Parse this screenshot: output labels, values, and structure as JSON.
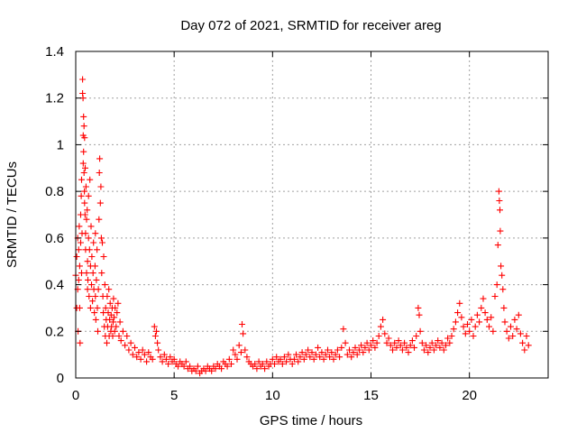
{
  "chart_data": {
    "type": "scatter",
    "title": "Day 072 of 2021, SRMTID for receiver areg",
    "xlabel": "GPS time / hours",
    "ylabel": "SRMTID / TECUs",
    "xlim": [
      0,
      24
    ],
    "ylim": [
      0,
      1.4
    ],
    "xticks": [
      0,
      5,
      10,
      15,
      20
    ],
    "xtick_labels": [
      "0",
      "5",
      "10",
      "15",
      "20"
    ],
    "yticks": [
      0,
      0.2,
      0.4,
      0.6,
      0.8,
      1,
      1.2,
      1.4
    ],
    "ytick_labels": [
      "0",
      "0.2",
      "0.4",
      "0.6",
      "0.8",
      "1",
      "1.2",
      "1.4"
    ],
    "grid": true,
    "marker": "+",
    "color": "#ff0000",
    "series": [
      {
        "name": "SRMTID",
        "points": [
          [
            0.0,
            0.44
          ],
          [
            0.05,
            0.52
          ],
          [
            0.05,
            0.3
          ],
          [
            0.1,
            0.6
          ],
          [
            0.1,
            0.38
          ],
          [
            0.12,
            0.2
          ],
          [
            0.15,
            0.55
          ],
          [
            0.15,
            0.42
          ],
          [
            0.18,
            0.65
          ],
          [
            0.2,
            0.3
          ],
          [
            0.2,
            0.48
          ],
          [
            0.22,
            0.15
          ],
          [
            0.25,
            0.7
          ],
          [
            0.25,
            0.58
          ],
          [
            0.28,
            0.78
          ],
          [
            0.3,
            0.45
          ],
          [
            0.3,
            0.85
          ],
          [
            0.32,
            0.62
          ],
          [
            0.35,
            1.28
          ],
          [
            0.35,
            1.22
          ],
          [
            0.37,
            1.2
          ],
          [
            0.38,
            0.92
          ],
          [
            0.38,
            1.04
          ],
          [
            0.4,
            0.97
          ],
          [
            0.4,
            1.12
          ],
          [
            0.42,
            1.08
          ],
          [
            0.42,
            0.88
          ],
          [
            0.44,
            0.8
          ],
          [
            0.45,
            1.03
          ],
          [
            0.45,
            0.75
          ],
          [
            0.47,
            0.7
          ],
          [
            0.48,
            0.9
          ],
          [
            0.5,
            0.62
          ],
          [
            0.5,
            0.55
          ],
          [
            0.52,
            0.82
          ],
          [
            0.55,
            0.68
          ],
          [
            0.55,
            0.45
          ],
          [
            0.58,
            0.72
          ],
          [
            0.6,
            0.5
          ],
          [
            0.6,
            0.38
          ],
          [
            0.62,
            0.42
          ],
          [
            0.65,
            0.78
          ],
          [
            0.65,
            0.6
          ],
          [
            0.68,
            0.35
          ],
          [
            0.7,
            0.55
          ],
          [
            0.72,
            0.85
          ],
          [
            0.75,
            0.48
          ],
          [
            0.75,
            0.3
          ],
          [
            0.78,
            0.65
          ],
          [
            0.8,
            0.4
          ],
          [
            0.82,
            0.52
          ],
          [
            0.85,
            0.33
          ],
          [
            0.88,
            0.45
          ],
          [
            0.9,
            0.58
          ],
          [
            0.92,
            0.38
          ],
          [
            0.95,
            0.28
          ],
          [
            0.98,
            0.48
          ],
          [
            1.0,
            0.35
          ],
          [
            1.0,
            0.62
          ],
          [
            1.02,
            0.25
          ],
          [
            1.05,
            0.42
          ],
          [
            1.08,
            0.55
          ],
          [
            1.1,
            0.3
          ],
          [
            1.12,
            0.2
          ],
          [
            1.15,
            0.38
          ],
          [
            1.18,
            0.68
          ],
          [
            1.2,
            0.88
          ],
          [
            1.22,
            0.94
          ],
          [
            1.25,
            0.75
          ],
          [
            1.28,
            0.82
          ],
          [
            1.3,
            0.6
          ],
          [
            1.32,
            0.45
          ],
          [
            1.35,
            0.58
          ],
          [
            1.38,
            0.35
          ],
          [
            1.4,
            0.28
          ],
          [
            1.42,
            0.52
          ],
          [
            1.45,
            0.22
          ],
          [
            1.48,
            0.4
          ],
          [
            1.5,
            0.18
          ],
          [
            1.52,
            0.3
          ],
          [
            1.55,
            0.25
          ],
          [
            1.58,
            0.15
          ],
          [
            1.6,
            0.35
          ],
          [
            1.62,
            0.22
          ],
          [
            1.65,
            0.28
          ],
          [
            1.68,
            0.38
          ],
          [
            1.7,
            0.18
          ],
          [
            1.72,
            0.25
          ],
          [
            1.75,
            0.32
          ],
          [
            1.78,
            0.2
          ],
          [
            1.8,
            0.27
          ],
          [
            1.82,
            0.22
          ],
          [
            1.85,
            0.3
          ],
          [
            1.88,
            0.18
          ],
          [
            1.9,
            0.24
          ],
          [
            1.92,
            0.34
          ],
          [
            1.95,
            0.26
          ],
          [
            1.98,
            0.2
          ],
          [
            2.0,
            0.3
          ],
          [
            2.05,
            0.22
          ],
          [
            2.1,
            0.28
          ],
          [
            2.15,
            0.32
          ],
          [
            2.2,
            0.18
          ],
          [
            2.25,
            0.24
          ],
          [
            2.3,
            0.16
          ],
          [
            2.4,
            0.2
          ],
          [
            2.5,
            0.14
          ],
          [
            2.6,
            0.18
          ],
          [
            2.7,
            0.12
          ],
          [
            2.8,
            0.15
          ],
          [
            2.9,
            0.1
          ],
          [
            3.0,
            0.13
          ],
          [
            3.1,
            0.09
          ],
          [
            3.2,
            0.11
          ],
          [
            3.3,
            0.08
          ],
          [
            3.4,
            0.12
          ],
          [
            3.5,
            0.1
          ],
          [
            3.6,
            0.07
          ],
          [
            3.7,
            0.11
          ],
          [
            3.8,
            0.09
          ],
          [
            3.9,
            0.08
          ],
          [
            4.0,
            0.22
          ],
          [
            4.05,
            0.18
          ],
          [
            4.1,
            0.2
          ],
          [
            4.15,
            0.15
          ],
          [
            4.2,
            0.12
          ],
          [
            4.3,
            0.09
          ],
          [
            4.4,
            0.07
          ],
          [
            4.5,
            0.1
          ],
          [
            4.6,
            0.08
          ],
          [
            4.7,
            0.06
          ],
          [
            4.8,
            0.09
          ],
          [
            4.9,
            0.07
          ],
          [
            5.0,
            0.08
          ],
          [
            5.1,
            0.06
          ],
          [
            5.2,
            0.05
          ],
          [
            5.3,
            0.07
          ],
          [
            5.4,
            0.06
          ],
          [
            5.5,
            0.05
          ],
          [
            5.6,
            0.07
          ],
          [
            5.7,
            0.04
          ],
          [
            5.8,
            0.05
          ],
          [
            5.9,
            0.03
          ],
          [
            6.0,
            0.04
          ],
          [
            6.1,
            0.03
          ],
          [
            6.2,
            0.05
          ],
          [
            6.3,
            0.02
          ],
          [
            6.4,
            0.03
          ],
          [
            6.5,
            0.04
          ],
          [
            6.6,
            0.03
          ],
          [
            6.7,
            0.05
          ],
          [
            6.8,
            0.04
          ],
          [
            6.9,
            0.03
          ],
          [
            7.0,
            0.05
          ],
          [
            7.1,
            0.04
          ],
          [
            7.2,
            0.06
          ],
          [
            7.3,
            0.05
          ],
          [
            7.4,
            0.04
          ],
          [
            7.5,
            0.07
          ],
          [
            7.6,
            0.06
          ],
          [
            7.7,
            0.05
          ],
          [
            7.8,
            0.08
          ],
          [
            7.9,
            0.06
          ],
          [
            8.0,
            0.12
          ],
          [
            8.1,
            0.1
          ],
          [
            8.2,
            0.08
          ],
          [
            8.3,
            0.14
          ],
          [
            8.4,
            0.11
          ],
          [
            8.45,
            0.23
          ],
          [
            8.5,
            0.19
          ],
          [
            8.6,
            0.12
          ],
          [
            8.7,
            0.09
          ],
          [
            8.8,
            0.07
          ],
          [
            8.9,
            0.06
          ],
          [
            9.0,
            0.05
          ],
          [
            9.1,
            0.06
          ],
          [
            9.2,
            0.04
          ],
          [
            9.3,
            0.07
          ],
          [
            9.4,
            0.05
          ],
          [
            9.5,
            0.06
          ],
          [
            9.6,
            0.04
          ],
          [
            9.7,
            0.07
          ],
          [
            9.8,
            0.05
          ],
          [
            9.9,
            0.06
          ],
          [
            10.0,
            0.08
          ],
          [
            10.1,
            0.06
          ],
          [
            10.2,
            0.09
          ],
          [
            10.3,
            0.07
          ],
          [
            10.4,
            0.08
          ],
          [
            10.5,
            0.06
          ],
          [
            10.6,
            0.09
          ],
          [
            10.7,
            0.07
          ],
          [
            10.8,
            0.1
          ],
          [
            10.9,
            0.08
          ],
          [
            11.0,
            0.06
          ],
          [
            11.1,
            0.08
          ],
          [
            11.2,
            0.1
          ],
          [
            11.3,
            0.07
          ],
          [
            11.4,
            0.09
          ],
          [
            11.5,
            0.11
          ],
          [
            11.6,
            0.08
          ],
          [
            11.7,
            0.1
          ],
          [
            11.8,
            0.12
          ],
          [
            11.9,
            0.09
          ],
          [
            12.0,
            0.11
          ],
          [
            12.1,
            0.08
          ],
          [
            12.2,
            0.1
          ],
          [
            12.3,
            0.13
          ],
          [
            12.4,
            0.09
          ],
          [
            12.5,
            0.11
          ],
          [
            12.6,
            0.08
          ],
          [
            12.7,
            0.1
          ],
          [
            12.8,
            0.12
          ],
          [
            12.9,
            0.09
          ],
          [
            13.0,
            0.11
          ],
          [
            13.1,
            0.08
          ],
          [
            13.2,
            0.1
          ],
          [
            13.3,
            0.12
          ],
          [
            13.4,
            0.09
          ],
          [
            13.5,
            0.13
          ],
          [
            13.6,
            0.21
          ],
          [
            13.7,
            0.15
          ],
          [
            13.8,
            0.1
          ],
          [
            13.9,
            0.12
          ],
          [
            14.0,
            0.09
          ],
          [
            14.1,
            0.11
          ],
          [
            14.2,
            0.13
          ],
          [
            14.3,
            0.1
          ],
          [
            14.4,
            0.12
          ],
          [
            14.5,
            0.14
          ],
          [
            14.6,
            0.11
          ],
          [
            14.7,
            0.13
          ],
          [
            14.8,
            0.15
          ],
          [
            14.9,
            0.12
          ],
          [
            15.0,
            0.14
          ],
          [
            15.1,
            0.16
          ],
          [
            15.2,
            0.13
          ],
          [
            15.3,
            0.15
          ],
          [
            15.4,
            0.18
          ],
          [
            15.5,
            0.22
          ],
          [
            15.6,
            0.25
          ],
          [
            15.7,
            0.19
          ],
          [
            15.8,
            0.15
          ],
          [
            15.9,
            0.17
          ],
          [
            16.0,
            0.14
          ],
          [
            16.1,
            0.12
          ],
          [
            16.2,
            0.15
          ],
          [
            16.3,
            0.13
          ],
          [
            16.4,
            0.16
          ],
          [
            16.5,
            0.14
          ],
          [
            16.6,
            0.12
          ],
          [
            16.7,
            0.15
          ],
          [
            16.8,
            0.13
          ],
          [
            16.9,
            0.11
          ],
          [
            17.0,
            0.14
          ],
          [
            17.1,
            0.16
          ],
          [
            17.2,
            0.13
          ],
          [
            17.3,
            0.18
          ],
          [
            17.4,
            0.3
          ],
          [
            17.45,
            0.27
          ],
          [
            17.5,
            0.2
          ],
          [
            17.6,
            0.15
          ],
          [
            17.7,
            0.12
          ],
          [
            17.8,
            0.14
          ],
          [
            17.9,
            0.11
          ],
          [
            18.0,
            0.13
          ],
          [
            18.1,
            0.15
          ],
          [
            18.2,
            0.12
          ],
          [
            18.3,
            0.14
          ],
          [
            18.4,
            0.16
          ],
          [
            18.5,
            0.13
          ],
          [
            18.6,
            0.15
          ],
          [
            18.7,
            0.12
          ],
          [
            18.8,
            0.14
          ],
          [
            18.9,
            0.17
          ],
          [
            19.0,
            0.15
          ],
          [
            19.1,
            0.18
          ],
          [
            19.2,
            0.21
          ],
          [
            19.3,
            0.24
          ],
          [
            19.4,
            0.28
          ],
          [
            19.5,
            0.32
          ],
          [
            19.6,
            0.26
          ],
          [
            19.7,
            0.22
          ],
          [
            19.8,
            0.19
          ],
          [
            19.9,
            0.23
          ],
          [
            20.0,
            0.2
          ],
          [
            20.1,
            0.25
          ],
          [
            20.2,
            0.18
          ],
          [
            20.3,
            0.22
          ],
          [
            20.4,
            0.27
          ],
          [
            20.5,
            0.24
          ],
          [
            20.6,
            0.3
          ],
          [
            20.7,
            0.34
          ],
          [
            20.8,
            0.28
          ],
          [
            20.9,
            0.25
          ],
          [
            21.0,
            0.22
          ],
          [
            21.1,
            0.26
          ],
          [
            21.2,
            0.2
          ],
          [
            21.3,
            0.35
          ],
          [
            21.4,
            0.4
          ],
          [
            21.45,
            0.57
          ],
          [
            21.5,
            0.8
          ],
          [
            21.52,
            0.76
          ],
          [
            21.55,
            0.72
          ],
          [
            21.57,
            0.63
          ],
          [
            21.6,
            0.48
          ],
          [
            21.65,
            0.44
          ],
          [
            21.7,
            0.38
          ],
          [
            21.75,
            0.3
          ],
          [
            21.8,
            0.24
          ],
          [
            21.9,
            0.2
          ],
          [
            22.0,
            0.17
          ],
          [
            22.1,
            0.22
          ],
          [
            22.2,
            0.18
          ],
          [
            22.3,
            0.25
          ],
          [
            22.4,
            0.21
          ],
          [
            22.5,
            0.27
          ],
          [
            22.6,
            0.19
          ],
          [
            22.7,
            0.15
          ],
          [
            22.8,
            0.12
          ],
          [
            22.9,
            0.18
          ],
          [
            23.0,
            0.14
          ]
        ]
      }
    ]
  }
}
